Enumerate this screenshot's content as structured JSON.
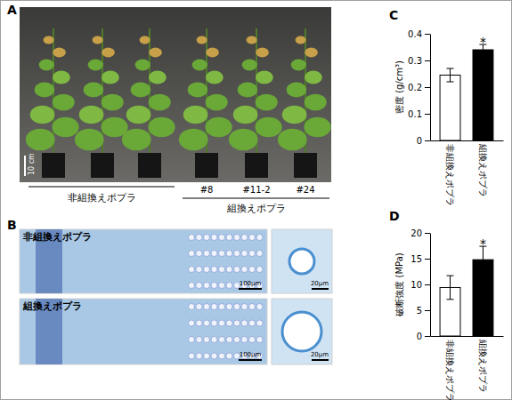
{
  "chart_data": [
    {
      "type": "bar",
      "y_label": "密度 (g/cm³)",
      "categories": [
        "非組換えポプラ",
        "組換えポプラ"
      ],
      "values": [
        0.245,
        0.34
      ],
      "errors": [
        0.025,
        0.02
      ],
      "colors": [
        "#ffffff",
        "#000000"
      ],
      "ylim": [
        0,
        0.4
      ],
      "yticks": [
        0,
        0.1,
        0.2,
        0.3,
        0.4
      ],
      "annotations": [
        {
          "text": "*",
          "category": "組換えポプラ"
        }
      ]
    },
    {
      "type": "bar",
      "y_label": "破断強度 (MPa)",
      "categories": [
        "非組換えポプラ",
        "組換えポプラ"
      ],
      "values": [
        9.4,
        14.8
      ],
      "errors": [
        2.3,
        2.6
      ],
      "colors": [
        "#ffffff",
        "#000000"
      ],
      "ylim": [
        0,
        20
      ],
      "yticks": [
        0,
        5,
        10,
        15,
        20
      ],
      "annotations": [
        {
          "text": "*",
          "category": "組換えポプラ"
        }
      ]
    }
  ],
  "figure": {
    "panel_a": {
      "letter": "A",
      "scale_bar": "10 cm",
      "group_labels": [
        "非組換えポプラ",
        "組換えポプラ"
      ],
      "plant_labels": [
        "#8",
        "#11-2",
        "#24"
      ]
    },
    "panel_b": {
      "letter": "B",
      "sample_labels": [
        "非組換えポプラ",
        "組換えポプラ"
      ],
      "scale_bars": [
        "100μm",
        "20μm"
      ]
    },
    "chart_letters": [
      "C",
      "D"
    ]
  }
}
